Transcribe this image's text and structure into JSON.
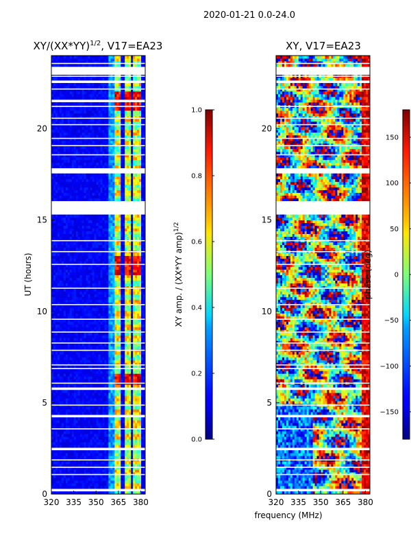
{
  "figure_title": "2020-01-21 0.0-24.0",
  "shared_xlabel": "frequency (MHz)",
  "chart_data": [
    {
      "type": "heatmap",
      "title": "XY/(XX*YY)",
      "title_sup": "1/2",
      "title_suffix": ", V17=EA23",
      "xlabel": "",
      "ylabel": "UT (hours)",
      "xlim": [
        320,
        383
      ],
      "ylim": [
        0,
        24
      ],
      "xticks": [
        320,
        335,
        350,
        365,
        380
      ],
      "yticks": [
        0,
        5,
        10,
        15,
        20
      ],
      "colorbar": {
        "label": "XY amp. / (XX*YY amp)",
        "label_sup": "1/2",
        "range": [
          0.0,
          1.0
        ],
        "ticks": [
          "0.0",
          "0.2",
          "0.4",
          "0.6",
          "0.8",
          "1.0"
        ],
        "tick_values": [
          0.0,
          0.2,
          0.4,
          0.6,
          0.8,
          1.0
        ],
        "colormap": "jet"
      },
      "gaps_hours": [
        [
          23.0,
          23.35
        ],
        [
          22.5,
          22.6
        ],
        [
          21.5,
          21.55
        ],
        [
          17.6,
          17.85
        ],
        [
          15.3,
          16.0
        ],
        [
          5.65,
          5.85
        ],
        [
          4.25,
          4.35
        ],
        [
          2.35,
          2.5
        ],
        [
          0.2,
          0.25
        ]
      ],
      "bright_band_mhz": [
        [
          362,
          367
        ],
        [
          369,
          373
        ],
        [
          375,
          380
        ]
      ],
      "hot_rows_hours": [
        [
          21.0,
          22.0
        ],
        [
          12.0,
          13.0
        ],
        [
          6.0,
          6.6
        ]
      ]
    },
    {
      "type": "heatmap",
      "title": "XY, V17=EA23",
      "xlabel": "frequency (MHz)",
      "ylabel": "",
      "xlim": [
        320,
        383
      ],
      "ylim": [
        0,
        24
      ],
      "xticks": [
        320,
        335,
        350,
        365,
        380
      ],
      "yticks": [
        0,
        5,
        10,
        15,
        20
      ],
      "colorbar": {
        "label": "phase (deg)",
        "range": [
          -180,
          180
        ],
        "ticks": [
          "−150",
          "−100",
          "−50",
          "0",
          "50",
          "100",
          "150"
        ],
        "tick_values": [
          -150,
          -100,
          -50,
          0,
          50,
          100,
          150
        ],
        "colormap": "jet"
      },
      "gaps_hours": [
        [
          23.0,
          23.35
        ],
        [
          22.5,
          22.6
        ],
        [
          17.6,
          17.85
        ],
        [
          15.3,
          16.0
        ],
        [
          5.65,
          5.85
        ],
        [
          4.25,
          4.35
        ],
        [
          2.35,
          2.5
        ],
        [
          0.2,
          0.25
        ]
      ]
    }
  ]
}
